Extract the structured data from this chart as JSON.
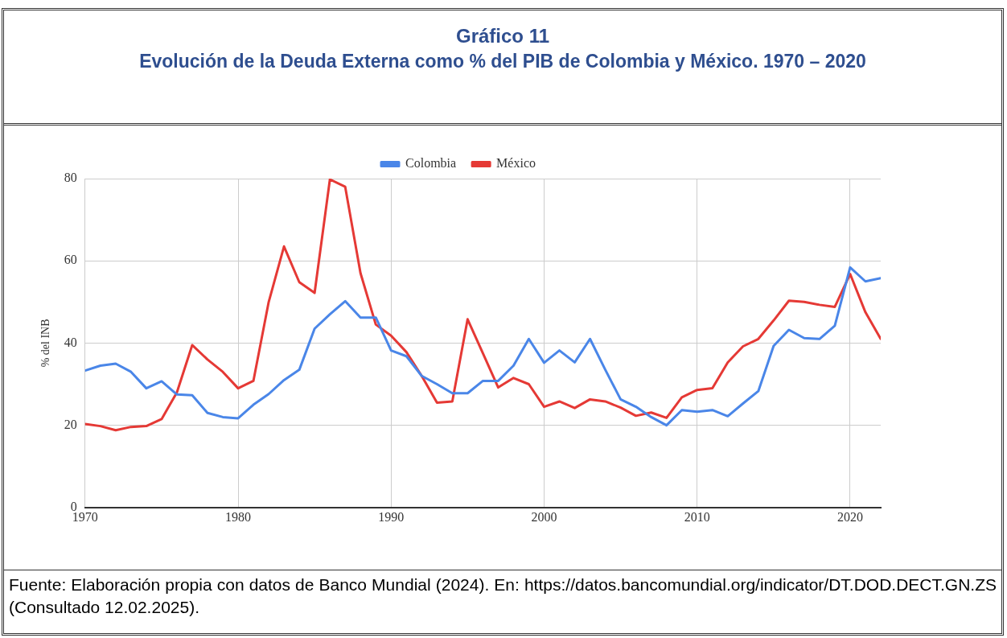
{
  "chart_data": {
    "type": "line",
    "title": "Gráfico 11",
    "subtitle": "Evolución de la Deuda Externa como % del PIB de Colombia y México. 1970 – 2020",
    "ylabel": "% del INB",
    "x": [
      1970,
      1971,
      1972,
      1973,
      1974,
      1975,
      1976,
      1977,
      1978,
      1979,
      1980,
      1981,
      1982,
      1983,
      1984,
      1985,
      1986,
      1987,
      1988,
      1989,
      1990,
      1991,
      1992,
      1993,
      1994,
      1995,
      1996,
      1997,
      1998,
      1999,
      2000,
      2001,
      2002,
      2003,
      2004,
      2005,
      2006,
      2007,
      2008,
      2009,
      2010,
      2011,
      2012,
      2013,
      2014,
      2015,
      2016,
      2017,
      2018,
      2019,
      2020,
      2021,
      2022
    ],
    "series": [
      {
        "name": "Colombia",
        "color": "#4a86e8",
        "values": [
          33.3,
          34.5,
          35,
          33,
          29,
          30.7,
          27.5,
          27.3,
          23,
          22,
          21.7,
          25,
          27.6,
          31,
          33.5,
          43.5,
          47,
          50.2,
          46.2,
          46.2,
          38.2,
          36.8,
          32,
          30,
          27.8,
          27.8,
          30.8,
          30.8,
          34.5,
          41,
          35.2,
          38.2,
          35.3,
          41,
          33.5,
          26.3,
          24.5,
          22,
          20,
          23.7,
          23.3,
          23.7,
          22.2,
          25.3,
          28.3,
          39.3,
          43.2,
          41.2,
          41,
          44.2,
          58.4,
          55,
          55.8
        ]
      },
      {
        "name": "México",
        "color": "#e53935",
        "values": [
          20.3,
          19.8,
          18.8,
          19.6,
          19.8,
          21.5,
          28,
          39.5,
          36,
          33,
          29,
          30.8,
          50,
          63.5,
          54.8,
          52.2,
          79.8,
          78,
          57,
          44.5,
          41.8,
          37.8,
          32,
          25.5,
          25.8,
          45.8,
          37.5,
          29.2,
          31.5,
          30,
          24.5,
          25.8,
          24.2,
          26.3,
          25.8,
          24.3,
          22.3,
          23.1,
          21.8,
          26.8,
          28.6,
          29,
          35.3,
          39.2,
          41,
          45.5,
          50.3,
          50,
          49.3,
          48.8,
          56.8,
          47.5,
          41
        ]
      }
    ],
    "xlim": [
      1970,
      2022
    ],
    "xticks": [
      1970,
      1980,
      1990,
      2000,
      2010,
      2020
    ],
    "ylim": [
      0,
      80
    ],
    "yticks": [
      0,
      20,
      40,
      60,
      80
    ],
    "grid": true,
    "legend": "top",
    "marker": "none",
    "line_style": "solid",
    "annotations": [
      "Fuente: Elaboración propia con datos de Banco Mundial (2024). En: https://datos.bancomundial.org/indicator/DT.DOD.DECT.GN.ZS (Consultado 12.02.2025)."
    ]
  }
}
